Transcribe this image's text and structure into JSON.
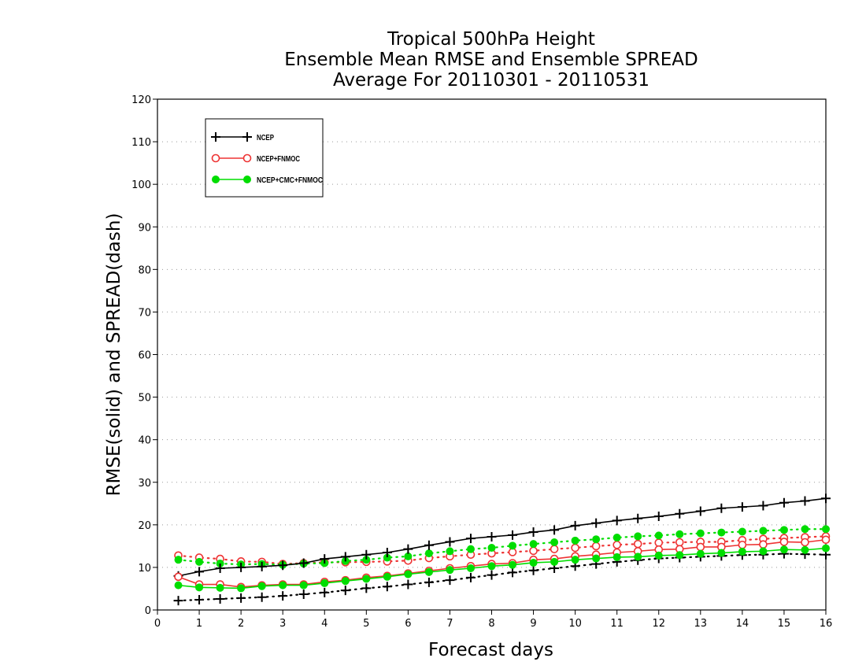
{
  "chart_data": {
    "type": "line",
    "title": [
      "Tropical 500hPa Height",
      "Ensemble Mean RMSE and Ensemble SPREAD",
      "Average For 20110301 - 20110531"
    ],
    "xlabel": "Forecast days",
    "ylabel": "RMSE(solid) and SPREAD(dash)",
    "xlim": [
      0,
      16
    ],
    "ylim": [
      0,
      120
    ],
    "xticks": [
      "0",
      "1",
      "2",
      "3",
      "4",
      "5",
      "6",
      "7",
      "8",
      "9",
      "10",
      "11",
      "12",
      "13",
      "14",
      "15",
      "16"
    ],
    "yticks": [
      "0",
      "10",
      "20",
      "30",
      "40",
      "50",
      "60",
      "70",
      "80",
      "90",
      "100",
      "110",
      "120"
    ],
    "grid": true,
    "legend_position": "top-left",
    "x": [
      0.5,
      1,
      1.5,
      2,
      2.5,
      3,
      3.5,
      4,
      4.5,
      5,
      5.5,
      6,
      6.5,
      7,
      7.5,
      8,
      8.5,
      9,
      9.5,
      10,
      10.5,
      11,
      11.5,
      12,
      12.5,
      13,
      13.5,
      14,
      14.5,
      15,
      15.5,
      16
    ],
    "series": [
      {
        "name": "NCEP",
        "kind": "rmse",
        "color": "#000000",
        "marker": "plus",
        "values": [
          8,
          9,
          9.8,
          10,
          10.2,
          10.5,
          11,
          12,
          12.5,
          13,
          13.5,
          14.3,
          15.2,
          16,
          16.8,
          17.2,
          17.6,
          18.3,
          18.8,
          19.8,
          20.4,
          21,
          21.5,
          22,
          22.6,
          23.2,
          23.9,
          24.2,
          24.5,
          25.2,
          25.6,
          26.2
        ]
      },
      {
        "name": "NCEP+FNMOC",
        "kind": "rmse",
        "color": "#ee3333",
        "marker": "circle-open",
        "values": [
          7.8,
          6,
          6,
          5.4,
          5.8,
          6,
          6,
          6.6,
          7,
          7.6,
          8,
          8.6,
          9.2,
          9.8,
          10.3,
          10.8,
          11,
          11.8,
          12,
          12.6,
          13,
          13.5,
          13.8,
          14.2,
          14.3,
          14.8,
          14.8,
          15.3,
          15.4,
          16,
          15.9,
          16.5
        ]
      },
      {
        "name": "NCEP+CMC+FNMOC",
        "kind": "rmse",
        "color": "#00dd00",
        "marker": "circle-filled",
        "values": [
          5.8,
          5.3,
          5.2,
          5.1,
          5.6,
          5.8,
          5.8,
          6.3,
          6.8,
          7.3,
          7.8,
          8.4,
          8.9,
          9.4,
          9.8,
          10.3,
          10.6,
          11.1,
          11.3,
          11.8,
          12.1,
          12.4,
          12.5,
          12.8,
          12.9,
          13.2,
          13.4,
          13.7,
          13.8,
          14.2,
          14.1,
          14.5
        ]
      },
      {
        "kind": "spread",
        "color": "#000000",
        "marker": "plus",
        "values": [
          2.2,
          2.4,
          2.6,
          2.8,
          3,
          3.3,
          3.7,
          4.1,
          4.6,
          5.1,
          5.5,
          6,
          6.5,
          7,
          7.6,
          8.2,
          8.8,
          9.3,
          9.8,
          10.3,
          10.8,
          11.3,
          11.7,
          12.1,
          12.3,
          12.5,
          12.7,
          12.9,
          13,
          13.2,
          13.1,
          13
        ]
      },
      {
        "kind": "spread",
        "color": "#ee3333",
        "marker": "circle-open",
        "values": [
          12.8,
          12.3,
          12,
          11.4,
          11.3,
          10.8,
          11,
          11.2,
          11.2,
          11.3,
          11.4,
          11.6,
          12.2,
          12.6,
          13,
          13.3,
          13.6,
          13.9,
          14.3,
          14.6,
          15,
          15.3,
          15.5,
          15.8,
          15.9,
          16,
          16,
          16.4,
          16.7,
          16.9,
          17.1,
          17.3
        ]
      },
      {
        "kind": "spread",
        "color": "#00dd00",
        "marker": "circle-filled",
        "values": [
          11.8,
          11.3,
          10.9,
          10.7,
          10.8,
          10.6,
          10.9,
          11,
          11.5,
          11.8,
          12.3,
          12.6,
          13.3,
          13.8,
          14.3,
          14.6,
          15.1,
          15.5,
          15.9,
          16.3,
          16.6,
          17,
          17.3,
          17.5,
          17.8,
          18,
          18.2,
          18.4,
          18.6,
          18.8,
          19,
          19
        ]
      }
    ]
  }
}
